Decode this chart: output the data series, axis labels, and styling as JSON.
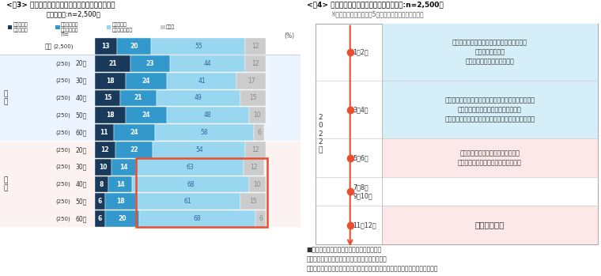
{
  "fig3_title": "<図3> 国内の範囲を問わずに自由に外出できる条件",
  "fig3_subtitle": "（単一回答:n=2,500）",
  "fig3_legend_labels": [
    "既に範囲を\n問わず外出",
    "ワクチン接種\nの進行による",
    "感染者数が\n低い水準ならば",
    "その他"
  ],
  "fig3_colors": [
    "#1a3a5c",
    "#3399cc",
    "#99d6f0",
    "#cccccc"
  ],
  "fig3_rows": [
    {
      "label": "全体",
      "n": "(2,500)",
      "vals": [
        13,
        20,
        55,
        12
      ],
      "group": "total"
    },
    {
      "label": "20代",
      "n": "(250)",
      "vals": [
        21,
        23,
        44,
        12
      ],
      "group": "male"
    },
    {
      "label": "30代",
      "n": "(250)",
      "vals": [
        18,
        24,
        41,
        17
      ],
      "group": "male"
    },
    {
      "label": "40代",
      "n": "(250)",
      "vals": [
        15,
        21,
        49,
        15
      ],
      "group": "male"
    },
    {
      "label": "50代",
      "n": "(250)",
      "vals": [
        18,
        24,
        48,
        10
      ],
      "group": "male"
    },
    {
      "label": "60代",
      "n": "(250)",
      "vals": [
        11,
        24,
        58,
        6
      ],
      "group": "male"
    },
    {
      "label": "20代",
      "n": "(250)",
      "vals": [
        12,
        22,
        54,
        12
      ],
      "group": "female"
    },
    {
      "label": "30代",
      "n": "(250)",
      "vals": [
        10,
        14,
        63,
        12
      ],
      "group": "female"
    },
    {
      "label": "40代",
      "n": "(250)",
      "vals": [
        8,
        14,
        68,
        10
      ],
      "group": "female"
    },
    {
      "label": "50代",
      "n": "(250)",
      "vals": [
        6,
        18,
        61,
        15
      ],
      "group": "female"
    },
    {
      "label": "60代",
      "n": "(250)",
      "vals": [
        6,
        20,
        68,
        6
      ],
      "group": "female"
    }
  ],
  "fig3_male_bg": "#ddeeff",
  "fig3_female_bg": "#fde8e8",
  "fig3_highlight_color": "#e84e30",
  "fig4_title": "<図4> 気がねなく外出できる時期（単一回答:n=2,500）",
  "fig4_subtitle": "※「外出してもよい」と5割以上が回答した時期を掲載",
  "fig4_year_label": "2\n0\n2\n2\n年",
  "fig4_months": [
    "1・2月",
    "3・4月",
    "5・6月",
    "7・8月\n9・10月",
    "11・12月"
  ],
  "fig4_texts": [
    "博物館・美術館、水族館・動物園・植物園、\n映画館・演劇場、\n県境を越えない国内観光旅行",
    "遊園地・テーマパーク、温泉・スパ・スーパー銭湯・\nサウナ、県境を越える国内観光旅行、\nスポーツジム、スポーツ観戦、カラオケ・ボウリング",
    "音楽イベント、お祭り・花火大会・\n音楽以外のフェスティバル・イベント",
    "",
    "海外観光旅行"
  ],
  "fig4_bg_colors": [
    "#d6eef8",
    "#d6eef8",
    "#fde8e8",
    "#ffffff",
    "#fde8e8"
  ],
  "fig4_note": "■既に行っても良いと思っている場所・目的\n飲食店、友人・知人・恋人に会う、家族に会う、\nアウトレットモール・ショッピングモール・百貨店、アウトドア、習い事をする",
  "fig4_arrow_color": "#e84e30",
  "fig4_dot_color": "#e84e30",
  "fig4_row_heights": [
    3,
    3,
    2,
    1.5,
    2
  ]
}
